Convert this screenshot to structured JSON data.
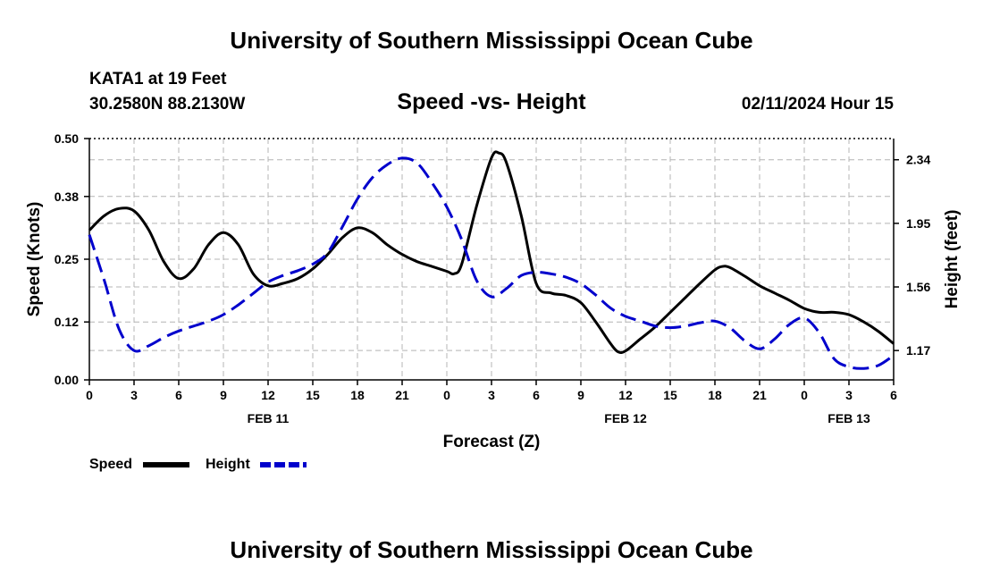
{
  "header": {
    "title": "University of Southern Mississippi Ocean Cube",
    "station": "KATA1 at 19 Feet",
    "coords": "30.2580N  88.2130W",
    "datetime": "02/11/2024 Hour 15"
  },
  "footer": {
    "title": "University of Southern Mississippi Ocean Cube"
  },
  "chart_data": {
    "type": "line",
    "title": "Speed -vs- Height",
    "xlabel": "Forecast (Z)",
    "ylabel": "Speed (Knots)",
    "y2label": "Height (feet)",
    "x_range_hours": [
      0,
      54
    ],
    "ylim": [
      0,
      0.5
    ],
    "y2lim": [
      0.99,
      2.47
    ],
    "x_tick_hours": [
      0,
      3,
      6,
      9,
      12,
      15,
      18,
      21,
      24,
      27,
      30,
      33,
      36,
      39,
      42,
      45,
      48,
      51,
      54
    ],
    "x_tick_labels": [
      "0",
      "3",
      "6",
      "9",
      "12",
      "15",
      "18",
      "21",
      "0",
      "3",
      "6",
      "9",
      "12",
      "15",
      "18",
      "21",
      "0",
      "3",
      "6"
    ],
    "date_labels": [
      {
        "hour": 12,
        "label": "FEB 11"
      },
      {
        "hour": 36,
        "label": "FEB 12"
      },
      {
        "hour": 51,
        "label": "FEB 13"
      }
    ],
    "y_ticks": [
      0.0,
      0.12,
      0.25,
      0.38,
      0.5
    ],
    "y_tick_labels": [
      "0.00",
      "0.12",
      "0.25",
      "0.38",
      "0.50"
    ],
    "y2_ticks": [
      1.17,
      1.56,
      1.95,
      2.34
    ],
    "y2_tick_labels": [
      "1.17",
      "1.56",
      "1.95",
      "2.34"
    ],
    "grid": true,
    "legend": "bottom-left",
    "series": [
      {
        "name": "Speed",
        "axis": "left",
        "color": "#000000",
        "style": "solid",
        "points": [
          [
            0,
            0.31
          ],
          [
            1,
            0.34
          ],
          [
            2,
            0.355
          ],
          [
            3,
            0.35
          ],
          [
            4,
            0.31
          ],
          [
            5,
            0.245
          ],
          [
            6,
            0.21
          ],
          [
            7,
            0.23
          ],
          [
            8,
            0.28
          ],
          [
            9,
            0.305
          ],
          [
            10,
            0.28
          ],
          [
            11,
            0.22
          ],
          [
            12,
            0.195
          ],
          [
            13,
            0.2
          ],
          [
            14,
            0.21
          ],
          [
            15,
            0.23
          ],
          [
            16,
            0.26
          ],
          [
            17,
            0.295
          ],
          [
            18,
            0.315
          ],
          [
            19,
            0.305
          ],
          [
            20,
            0.28
          ],
          [
            21,
            0.26
          ],
          [
            22,
            0.245
          ],
          [
            23,
            0.235
          ],
          [
            24,
            0.225
          ],
          [
            24.5,
            0.22
          ],
          [
            25,
            0.24
          ],
          [
            26,
            0.36
          ],
          [
            27,
            0.46
          ],
          [
            27.5,
            0.47
          ],
          [
            28,
            0.45
          ],
          [
            29,
            0.34
          ],
          [
            30,
            0.2
          ],
          [
            31,
            0.18
          ],
          [
            32,
            0.175
          ],
          [
            33,
            0.16
          ],
          [
            34,
            0.12
          ],
          [
            35,
            0.075
          ],
          [
            35.5,
            0.058
          ],
          [
            36,
            0.06
          ],
          [
            37,
            0.085
          ],
          [
            38,
            0.11
          ],
          [
            39,
            0.14
          ],
          [
            40,
            0.17
          ],
          [
            41,
            0.2
          ],
          [
            42,
            0.228
          ],
          [
            42.5,
            0.235
          ],
          [
            43,
            0.233
          ],
          [
            44,
            0.215
          ],
          [
            45,
            0.195
          ],
          [
            46,
            0.18
          ],
          [
            47,
            0.165
          ],
          [
            48,
            0.148
          ],
          [
            49,
            0.14
          ],
          [
            50,
            0.14
          ],
          [
            51,
            0.135
          ],
          [
            52,
            0.12
          ],
          [
            53,
            0.1
          ],
          [
            54,
            0.075
          ]
        ]
      },
      {
        "name": "Height",
        "axis": "right",
        "color": "#0000cc",
        "style": "dashed",
        "points": [
          [
            0,
            1.88
          ],
          [
            1,
            1.6
          ],
          [
            2,
            1.3
          ],
          [
            3,
            1.17
          ],
          [
            4,
            1.2
          ],
          [
            5,
            1.25
          ],
          [
            6,
            1.29
          ],
          [
            7,
            1.32
          ],
          [
            8,
            1.35
          ],
          [
            9,
            1.39
          ],
          [
            10,
            1.45
          ],
          [
            11,
            1.52
          ],
          [
            12,
            1.59
          ],
          [
            13,
            1.63
          ],
          [
            14,
            1.66
          ],
          [
            15,
            1.7
          ],
          [
            16,
            1.77
          ],
          [
            17,
            1.93
          ],
          [
            18,
            2.1
          ],
          [
            19,
            2.23
          ],
          [
            20,
            2.31
          ],
          [
            21,
            2.35
          ],
          [
            22,
            2.32
          ],
          [
            23,
            2.2
          ],
          [
            24,
            2.05
          ],
          [
            25,
            1.85
          ],
          [
            26,
            1.6
          ],
          [
            27,
            1.5
          ],
          [
            28,
            1.55
          ],
          [
            29,
            1.63
          ],
          [
            30,
            1.65
          ],
          [
            31,
            1.64
          ],
          [
            32,
            1.62
          ],
          [
            33,
            1.58
          ],
          [
            34,
            1.51
          ],
          [
            35,
            1.43
          ],
          [
            36,
            1.38
          ],
          [
            37,
            1.35
          ],
          [
            38,
            1.32
          ],
          [
            39,
            1.31
          ],
          [
            40,
            1.32
          ],
          [
            41,
            1.34
          ],
          [
            42,
            1.35
          ],
          [
            43,
            1.31
          ],
          [
            44,
            1.23
          ],
          [
            45,
            1.18
          ],
          [
            46,
            1.24
          ],
          [
            47,
            1.33
          ],
          [
            48,
            1.37
          ],
          [
            49,
            1.28
          ],
          [
            50,
            1.12
          ],
          [
            51,
            1.07
          ],
          [
            52,
            1.06
          ],
          [
            53,
            1.08
          ],
          [
            54,
            1.14
          ]
        ]
      }
    ]
  }
}
